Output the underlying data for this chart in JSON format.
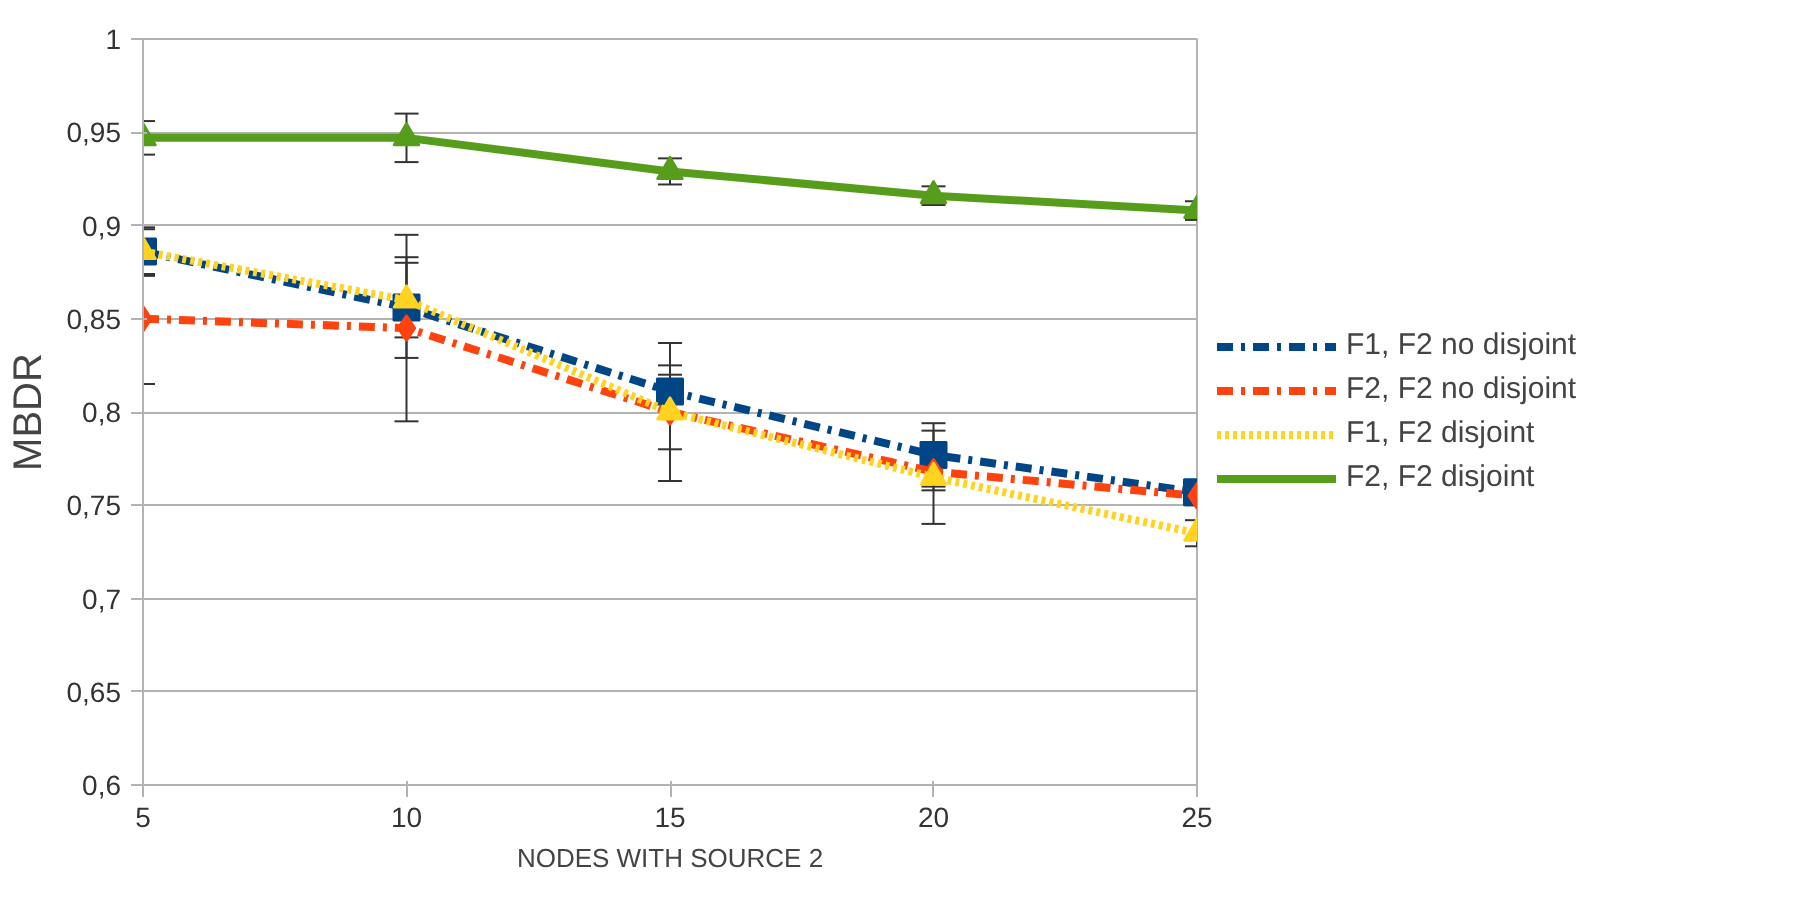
{
  "chart_data": {
    "type": "line",
    "xlabel": "NODES WITH SOURCE 2",
    "ylabel": "MBDR",
    "x": [
      5,
      10,
      15,
      20,
      25
    ],
    "xlim": [
      5,
      25
    ],
    "xticks": [
      5,
      10,
      15,
      20,
      25
    ],
    "ylim": [
      0.6,
      1
    ],
    "yticks": [
      {
        "value": 0.6,
        "label": "0,6"
      },
      {
        "value": 0.65,
        "label": "0,65"
      },
      {
        "value": 0.7,
        "label": "0,7"
      },
      {
        "value": 0.75,
        "label": "0,75"
      },
      {
        "value": 0.8,
        "label": "0,8"
      },
      {
        "value": 0.85,
        "label": "0,85"
      },
      {
        "value": 0.9,
        "label": "0,9"
      },
      {
        "value": 0.95,
        "label": "0,95"
      },
      {
        "value": 1,
        "label": "1"
      }
    ],
    "grid": "y",
    "legend": "right",
    "series": [
      {
        "name": "F1, F2 no disjoint",
        "color": "#004586",
        "marker": "square",
        "line_style": "dashed",
        "values": [
          0.886,
          0.856,
          0.811,
          0.777,
          0.757
        ],
        "errors": [
          0.013,
          0.027,
          0.014,
          0.017,
          0.006
        ]
      },
      {
        "name": "F2, F2 no disjoint",
        "color": "#ff420e",
        "marker": "diamond",
        "line_style": "dashed",
        "values": [
          0.85,
          0.845,
          0.8,
          0.768,
          0.755
        ],
        "errors": [
          0.035,
          0.05,
          0.037,
          0.01,
          0.005
        ]
      },
      {
        "name": "F1, F2 disjoint",
        "color": "#ffd320",
        "marker": "triangle",
        "line_style": "dotted",
        "values": [
          0.886,
          0.86,
          0.8,
          0.765,
          0.735
        ],
        "errors": [
          0.012,
          0.02,
          0.02,
          0.025,
          0.007
        ]
      },
      {
        "name": "F2, F2 disjoint",
        "color": "#579d1c",
        "marker": "triangle",
        "line_style": "solid",
        "values": [
          0.947,
          0.947,
          0.929,
          0.916,
          0.908
        ],
        "errors": [
          0.009,
          0.013,
          0.007,
          0.005,
          0.005
        ]
      }
    ]
  }
}
